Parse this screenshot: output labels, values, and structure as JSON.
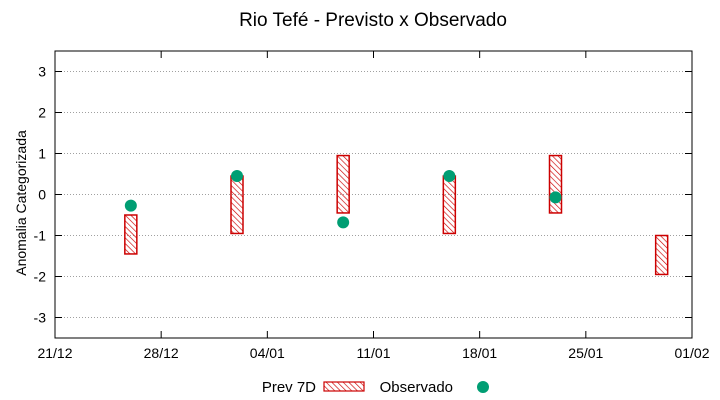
{
  "chart_data": {
    "type": "range-bar-scatter",
    "title": "Rio Tefé - Previsto x Observado",
    "xlabel": "",
    "ylabel": "Anomalia Categorizada",
    "ylim": [
      -3.5,
      3.5
    ],
    "yticks": [
      "-3",
      "-2",
      "-1",
      "0",
      "1",
      "2",
      "3"
    ],
    "ytick_values": [
      -3,
      -2,
      -1,
      0,
      1,
      2,
      3
    ],
    "xlim_days": [
      0,
      42
    ],
    "xticks": [
      "21/12",
      "28/12",
      "04/01",
      "11/01",
      "18/01",
      "25/01",
      "01/02"
    ],
    "xtick_days": [
      0,
      7,
      14,
      21,
      28,
      35,
      42
    ],
    "grid": true,
    "legend": {
      "position": "bottom-center",
      "entries": [
        "Prev 7D",
        "Observado"
      ]
    },
    "colors": {
      "forecast": "#cc0000",
      "observed": "#009e73",
      "grid": "#a0a0a0",
      "axis": "#000000"
    },
    "series": [
      {
        "name": "Prev 7D",
        "kind": "range",
        "points": [
          {
            "x_day": 5,
            "low": -1.45,
            "high": -0.5
          },
          {
            "x_day": 12,
            "low": -0.95,
            "high": 0.45
          },
          {
            "x_day": 19,
            "low": -0.45,
            "high": 0.95
          },
          {
            "x_day": 26,
            "low": -0.95,
            "high": 0.45
          },
          {
            "x_day": 33,
            "low": -0.45,
            "high": 0.95
          },
          {
            "x_day": 40,
            "low": -1.95,
            "high": -1.0
          }
        ]
      },
      {
        "name": "Observado",
        "kind": "scatter",
        "points": [
          {
            "x_day": 5,
            "y": -0.27
          },
          {
            "x_day": 12,
            "y": 0.45
          },
          {
            "x_day": 19,
            "y": -0.68
          },
          {
            "x_day": 26,
            "y": 0.45
          },
          {
            "x_day": 33,
            "y": -0.07
          }
        ]
      }
    ]
  }
}
